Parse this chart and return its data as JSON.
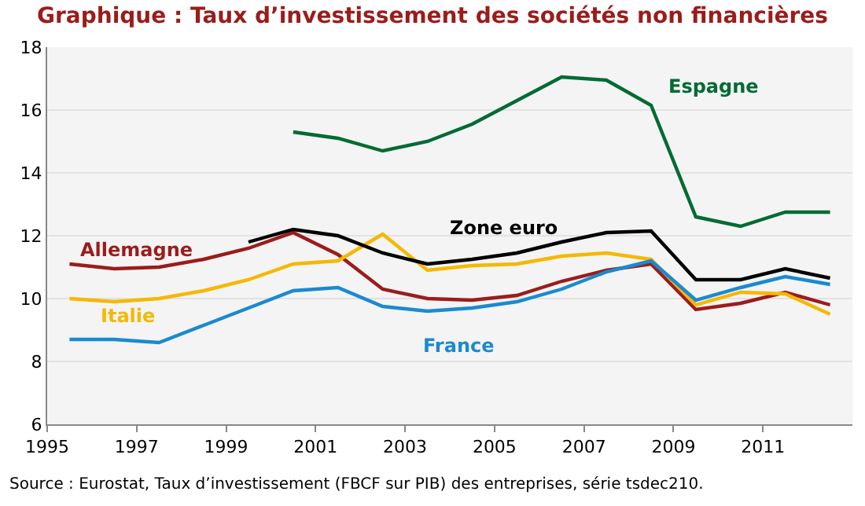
{
  "chart_data": {
    "type": "line",
    "title": "Graphique : Taux d’investissement des sociétés non financières",
    "x": [
      1995.5,
      1996.5,
      1997.5,
      1998.5,
      1999.5,
      2000.5,
      2001.5,
      2002.5,
      2003.5,
      2004.5,
      2005.5,
      2006.5,
      2007.5,
      2008.5,
      2009.5,
      2010.5,
      2011.5,
      2012.5
    ],
    "series": [
      {
        "name": "Allemagne",
        "color": "#9b1c1c",
        "values": [
          11.1,
          10.95,
          11.0,
          11.25,
          11.6,
          12.1,
          11.4,
          10.3,
          10.0,
          9.95,
          10.1,
          10.55,
          10.9,
          11.1,
          9.65,
          9.85,
          10.2,
          9.8
        ]
      },
      {
        "name": "Italie",
        "color": "#f5b800",
        "values": [
          10.0,
          9.9,
          10.0,
          10.25,
          10.6,
          11.1,
          11.2,
          12.05,
          10.9,
          11.05,
          11.1,
          11.35,
          11.45,
          11.25,
          9.8,
          10.2,
          10.15,
          9.5
        ]
      },
      {
        "name": "France",
        "color": "#1a8ad0",
        "values": [
          8.7,
          8.7,
          8.6,
          9.15,
          9.7,
          10.25,
          10.35,
          9.75,
          9.6,
          9.7,
          9.9,
          10.3,
          10.85,
          11.2,
          9.95,
          10.35,
          10.7,
          10.45
        ]
      },
      {
        "name": "Zone euro",
        "color": "#000000",
        "values": [
          null,
          null,
          null,
          null,
          11.8,
          12.2,
          12.0,
          11.45,
          11.1,
          11.25,
          11.45,
          11.8,
          12.1,
          12.15,
          10.6,
          10.6,
          10.95,
          10.65
        ]
      },
      {
        "name": "Espagne",
        "color": "#006b34",
        "values": [
          null,
          null,
          null,
          null,
          null,
          15.3,
          15.1,
          14.7,
          15.0,
          15.55,
          16.3,
          17.05,
          16.95,
          16.15,
          12.6,
          12.3,
          12.75,
          12.75
        ]
      }
    ],
    "xlim": [
      1995,
      2013
    ],
    "xticks": [
      1995,
      1997,
      1999,
      2001,
      2003,
      2005,
      2007,
      2009,
      2011
    ],
    "ylim": [
      6,
      18
    ],
    "yticks": [
      6,
      8,
      10,
      12,
      14,
      16,
      18
    ],
    "grid": "y",
    "legend": false,
    "marker": "none",
    "line_style": "solid",
    "annotations": [
      "Source : Eurostat, Taux d’investissement (FBCF sur PIB) des entreprises, série tsdec210."
    ]
  }
}
